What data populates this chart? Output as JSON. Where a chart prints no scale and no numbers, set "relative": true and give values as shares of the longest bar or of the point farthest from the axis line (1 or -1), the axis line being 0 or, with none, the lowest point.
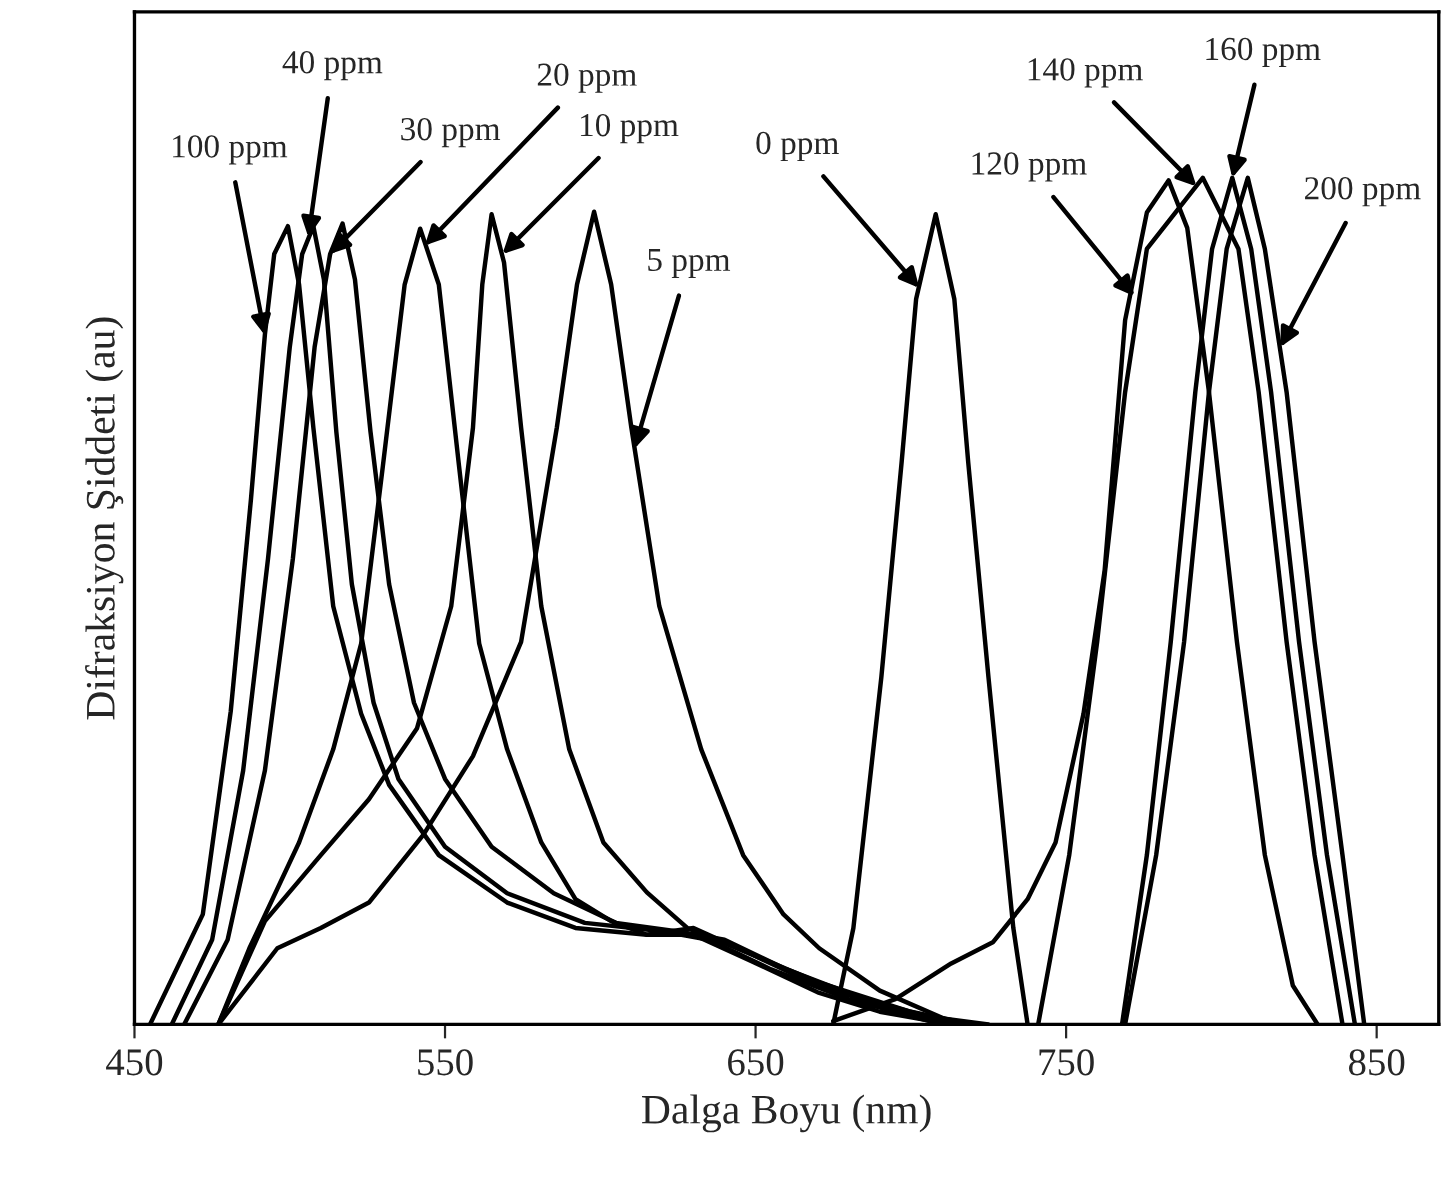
{
  "chart_data": {
    "type": "line",
    "xlabel": "Dalga Boyu (nm)",
    "ylabel": "Difraksiyon Şiddeti (au)",
    "relative": true,
    "xlim": [
      450,
      870
    ],
    "xticks": [
      450,
      550,
      650,
      750,
      850
    ],
    "grid": false,
    "legend": false,
    "marker": "none",
    "line_style": "solid",
    "series": [
      {
        "color": "#000000",
        "x": [
          675,
          681.5,
          690.5,
          697,
          701.7,
          708,
          714,
          718.5,
          725,
          733,
          737.6
        ],
        "values": [
          0,
          0.114,
          0.41,
          0.663,
          0.857,
          0.957,
          0.857,
          0.663,
          0.41,
          0.114,
          0
        ]
      },
      {
        "color": "#000000",
        "x": [
          477,
          496,
          510,
          525.5,
          543,
          559,
          574.5,
          586,
          592.5,
          598,
          603.5,
          610,
          619,
          632.5,
          646,
          659,
          670.5,
          690,
          715
        ],
        "values": [
          0,
          0.09,
          0.114,
          0.144,
          0.224,
          0.317,
          0.452,
          0.705,
          0.874,
          0.96,
          0.874,
          0.705,
          0.494,
          0.325,
          0.2,
          0.13,
          0.09,
          0.04,
          0
        ]
      },
      {
        "color": "#000000",
        "x": [
          477,
          492,
          510,
          525.5,
          541,
          552,
          559,
          562,
          565,
          569,
          574.5,
          581,
          590,
          601,
          615,
          628,
          648,
          670,
          700,
          725
        ],
        "values": [
          0,
          0.122,
          0.2,
          0.266,
          0.35,
          0.494,
          0.705,
          0.874,
          0.957,
          0.9,
          0.705,
          0.494,
          0.325,
          0.215,
          0.156,
          0.114,
          0.084,
          0.046,
          0.012,
          0
        ]
      },
      {
        "color": "#000000",
        "x": [
          477,
          487,
          503,
          514,
          523,
          530,
          537,
          542,
          548,
          554.5,
          561,
          570,
          581,
          592,
          603.5,
          615,
          630,
          648,
          670,
          700,
          720
        ],
        "values": [
          0,
          0.09,
          0.215,
          0.325,
          0.45,
          0.66,
          0.874,
          0.94,
          0.874,
          0.66,
          0.45,
          0.325,
          0.215,
          0.148,
          0.122,
          0.106,
          0.114,
          0.084,
          0.05,
          0.015,
          0
        ]
      },
      {
        "color": "#000000",
        "x": [
          466,
          480,
          492,
          501,
          508,
          513,
          517,
          521,
          526,
          532,
          540,
          550,
          565,
          585,
          605,
          625,
          640,
          660,
          685,
          715
        ],
        "values": [
          0,
          0.1,
          0.3,
          0.55,
          0.8,
          0.91,
          0.946,
          0.88,
          0.7,
          0.52,
          0.38,
          0.29,
          0.21,
          0.155,
          0.12,
          0.11,
          0.1,
          0.065,
          0.03,
          0
        ]
      },
      {
        "color": "#000000",
        "x": [
          462,
          475,
          485,
          493,
          500,
          504,
          507.6,
          511,
          515,
          520,
          527,
          535,
          550,
          570,
          595,
          620,
          635,
          655,
          680,
          710
        ],
        "values": [
          0,
          0.1,
          0.3,
          0.55,
          0.8,
          0.91,
          0.943,
          0.88,
          0.7,
          0.52,
          0.38,
          0.29,
          0.21,
          0.155,
          0.12,
          0.11,
          0.1,
          0.065,
          0.03,
          0
        ]
      },
      {
        "color": "#000000",
        "x": [
          455,
          472,
          481,
          487.5,
          492,
          495,
          499.4,
          503,
          507.6,
          514,
          523,
          532,
          548,
          570,
          592,
          615,
          630,
          648,
          670,
          690,
          713
        ],
        "values": [
          0,
          0.13,
          0.37,
          0.62,
          0.815,
          0.91,
          0.943,
          0.874,
          0.705,
          0.494,
          0.367,
          0.283,
          0.2,
          0.144,
          0.114,
          0.106,
          0.106,
          0.076,
          0.038,
          0.015,
          0
        ]
      },
      {
        "color": "#000000",
        "x": [
          675,
          695,
          713,
          726.4,
          737.6,
          746.6,
          755.6,
          762.4,
          769,
          776,
          783,
          789,
          796,
          805,
          814,
          823,
          831
        ],
        "values": [
          0.004,
          0.03,
          0.072,
          0.097,
          0.148,
          0.215,
          0.367,
          0.536,
          0.832,
          0.959,
          0.997,
          0.941,
          0.747,
          0.452,
          0.2,
          0.046,
          0
        ]
      },
      {
        "color": "#000000",
        "x": [
          741,
          751,
          760,
          769,
          776,
          794,
          805.5,
          812,
          821,
          830,
          839
        ],
        "values": [
          0,
          0.2,
          0.452,
          0.747,
          0.916,
          1,
          0.916,
          0.747,
          0.452,
          0.2,
          0
        ]
      },
      {
        "color": "#000000",
        "x": [
          768,
          776,
          783.7,
          791.6,
          797,
          803.5,
          809.6,
          816,
          825,
          834,
          843
        ],
        "values": [
          0,
          0.2,
          0.452,
          0.747,
          0.916,
          1,
          0.916,
          0.747,
          0.452,
          0.2,
          0
        ]
      },
      {
        "color": "#000000",
        "x": [
          769,
          779,
          788,
          796,
          801.7,
          808.5,
          814,
          821,
          830,
          839,
          846
        ],
        "values": [
          0,
          0.2,
          0.452,
          0.747,
          0.916,
          1,
          0.916,
          0.747,
          0.452,
          0.2,
          0
        ]
      }
    ],
    "annotations": [
      {
        "text": "100 ppm",
        "x": 492,
        "y": 0.814
      },
      {
        "text": "40 ppm",
        "x": 506,
        "y": 0.93
      },
      {
        "text": "30 ppm",
        "x": 513,
        "y": 0.91
      },
      {
        "text": "20 ppm",
        "x": 543.5,
        "y": 0.92
      },
      {
        "text": "10 ppm",
        "x": 568.5,
        "y": 0.91
      },
      {
        "text": "5 ppm",
        "x": 611,
        "y": 0.68
      },
      {
        "text": "0 ppm",
        "x": 702.7,
        "y": 0.87
      },
      {
        "text": "120 ppm",
        "x": 772,
        "y": 0.86
      },
      {
        "text": "140 ppm",
        "x": 792,
        "y": 0.99
      },
      {
        "text": "160 ppm",
        "x": 803.5,
        "y": 1.0
      },
      {
        "text": "200 ppm",
        "x": 819,
        "y": 0.8
      }
    ]
  }
}
